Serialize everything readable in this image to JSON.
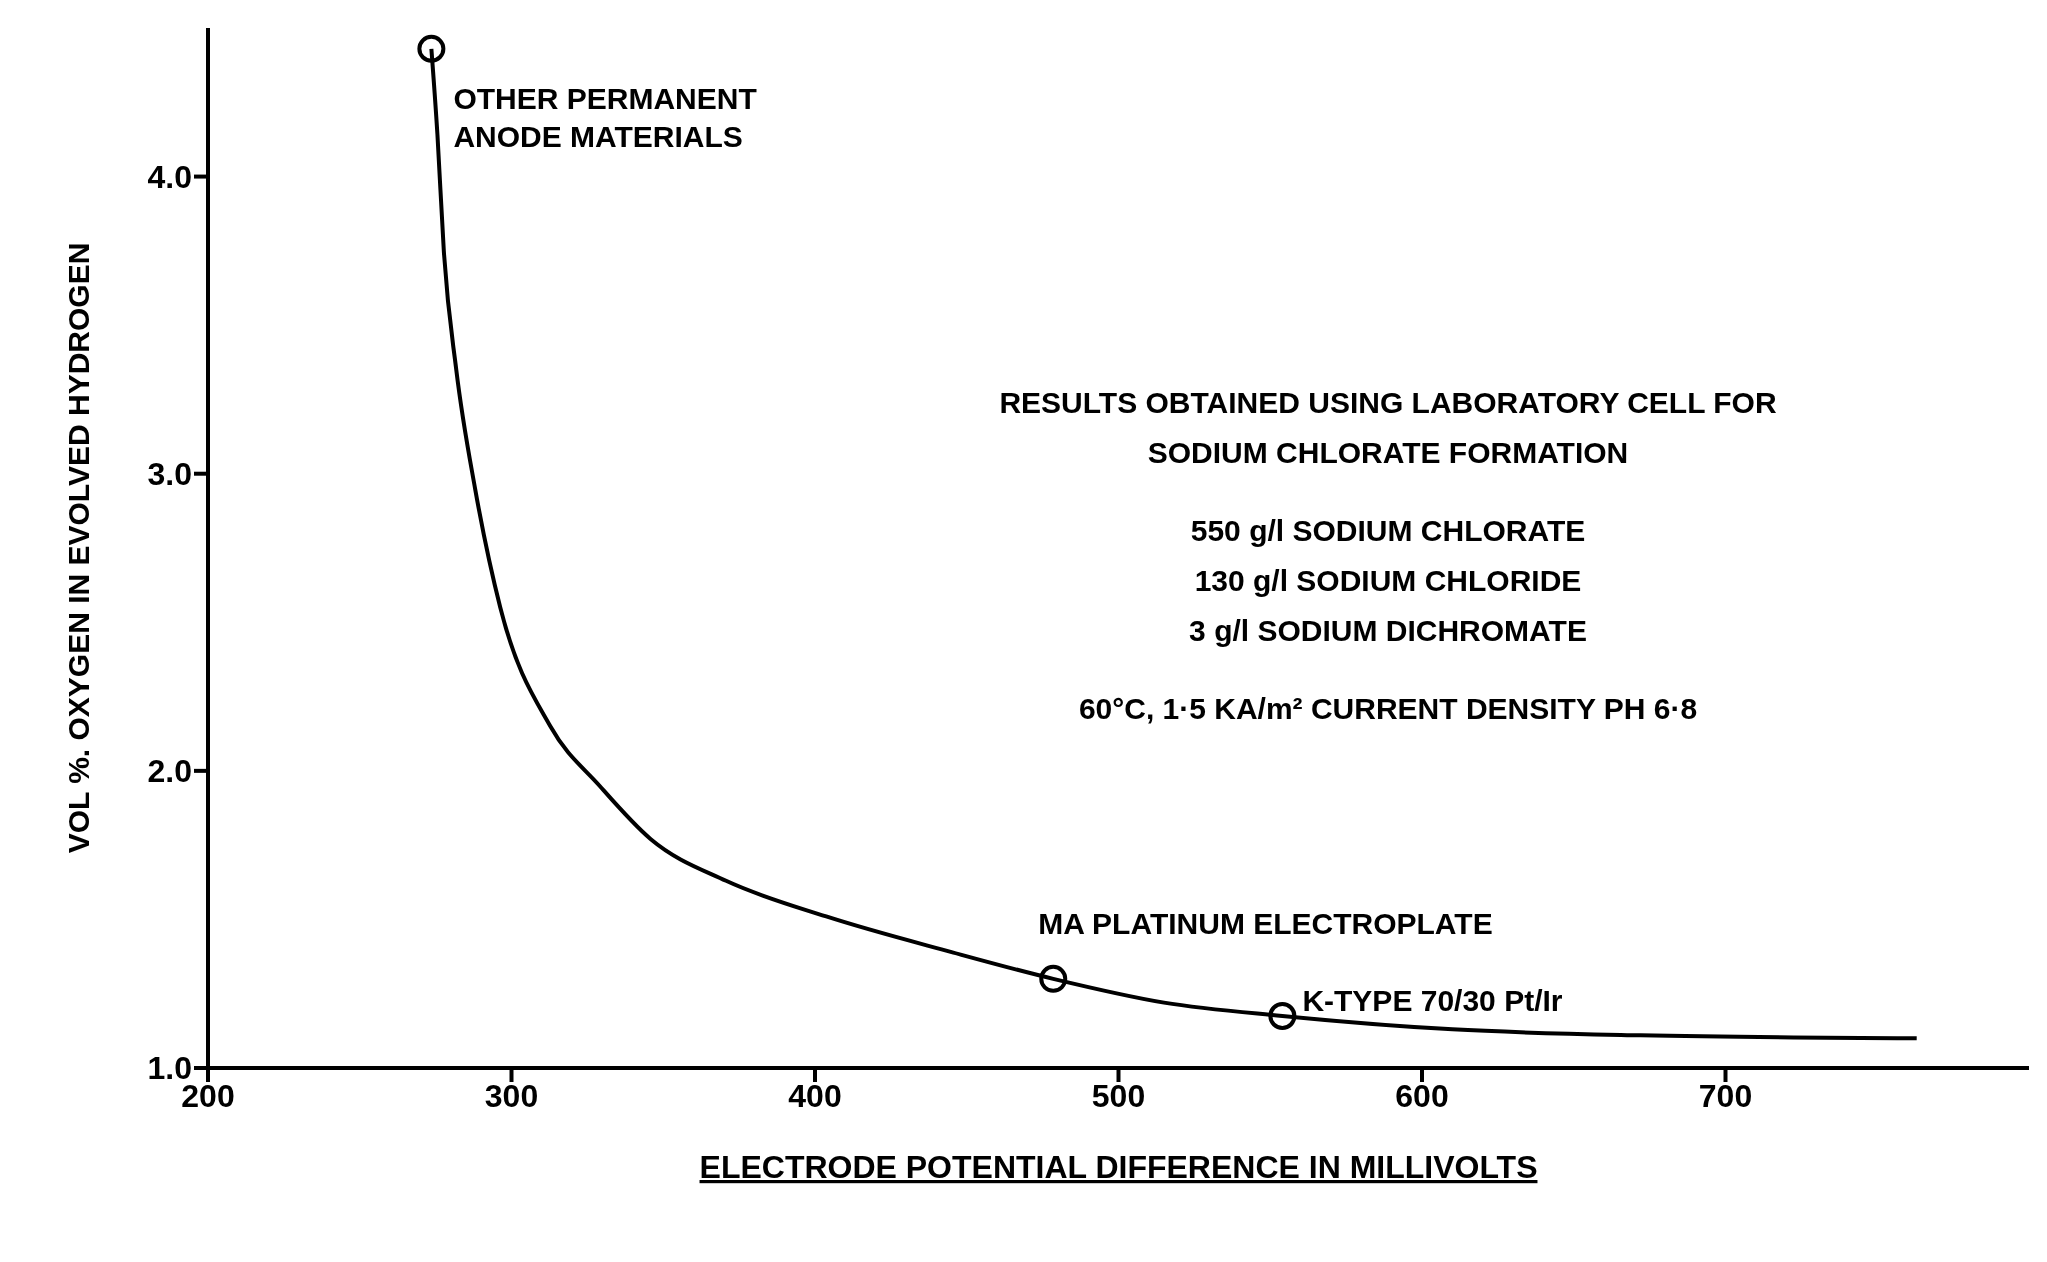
{
  "chart_data": {
    "type": "line",
    "xlabel": "ELECTRODE POTENTIAL DIFFERENCE IN MILLIVOLTS",
    "ylabel": "VOL %. OXYGEN IN EVOLVED HYDROGEN",
    "xlim": [
      200,
      800
    ],
    "xticks": [
      200,
      300,
      400,
      500,
      600,
      700
    ],
    "ylim": [
      1,
      4.5
    ],
    "yticks": [
      {
        "value": 1,
        "label": "1.0"
      },
      {
        "value": 2,
        "label": "2.0"
      },
      {
        "value": 3,
        "label": "3.0"
      },
      {
        "value": 4,
        "label": "4.0"
      }
    ],
    "grid": false,
    "series": [
      {
        "color": "#000000",
        "marker": "none",
        "line_style": "solid",
        "x": [
          273.6,
          275.6,
          277.7,
          281.8,
          288,
          296.3,
          312.8,
          329,
          345.9,
          370.7,
          403.7,
          445,
          478.5,
          515,
          554,
          610,
          672,
          763
        ],
        "values": [
          4.43,
          4.14,
          3.75,
          3.35,
          2.95,
          2.55,
          2.15,
          1.95,
          1.77,
          1.63,
          1.51,
          1.39,
          1.3,
          1.22,
          1.175,
          1.13,
          1.11,
          1.1
        ]
      },
      {
        "type": "scatter",
        "color": "#000000",
        "marker": "circle",
        "x": [
          273.6,
          478.5,
          554
        ],
        "values": [
          4.43,
          1.3,
          1.175
        ]
      }
    ],
    "annotations": [
      {
        "text": "OTHER PERMANENT\nANODE MATERIALS",
        "x": 273.6,
        "y": 4.43
      },
      {
        "text": "MA PLATINUM ELECTROPLATE",
        "x": 478.5,
        "y": 1.3
      },
      {
        "text": "K-TYPE 70/30 Pt/Ir",
        "x": 554,
        "y": 1.175
      },
      "RESULTS OBTAINED USING LABORATORY CELL FOR\nSODIUM CHLORATE FORMATION",
      "550 g/l SODIUM CHLORATE\n130 g/l SODIUM CHLORIDE\n3 g/l SODIUM DICHROMATE",
      "60°C, 1·5 KA/m² CURRENT DENSITY PH 6·8"
    ]
  }
}
